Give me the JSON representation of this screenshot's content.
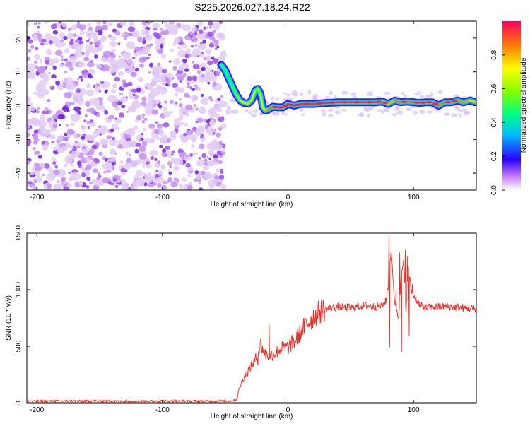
{
  "title": "S225.2026.027.18.24.R22",
  "chart_data": [
    {
      "type": "heatmap",
      "name": "spectrogram",
      "xlabel": "Height of straight line (km)",
      "ylabel": "Frequency (Hz)",
      "xlim": [
        -208,
        150
      ],
      "ylim": [
        -25,
        25
      ],
      "xticks": [
        -200,
        -100,
        0,
        100
      ],
      "yticks": [
        -20,
        -10,
        0,
        10,
        20
      ],
      "xtick_labels": [
        "-200",
        "-100",
        "0",
        "100"
      ],
      "ytick_labels": [
        "-20",
        "-10",
        "0",
        "10",
        "20"
      ],
      "noise_region": {
        "x_from": -208,
        "x_to": -51,
        "amplitude_range": [
          0.05,
          0.25
        ]
      },
      "signal_ridge": {
        "x": [
          -53,
          -50,
          -47,
          -44,
          -41,
          -38,
          -35,
          -32,
          -29,
          -26,
          -24,
          -22,
          -20,
          -18,
          -15,
          -12,
          -8,
          -4,
          0,
          5,
          10,
          20,
          30,
          40,
          50,
          60,
          70,
          75,
          80,
          85,
          90,
          95,
          100,
          105,
          110,
          115,
          120,
          125,
          130,
          135,
          140,
          145,
          150
        ],
        "frequency_hz": [
          12,
          10.5,
          8,
          5.5,
          3.2,
          1.5,
          0.8,
          0.6,
          1.5,
          4.5,
          5,
          3.5,
          -0.5,
          -1.5,
          -1,
          -0.3,
          -0.5,
          -0.5,
          0.5,
          0,
          0.5,
          0.5,
          0.8,
          1,
          1,
          1,
          1,
          1.2,
          0.5,
          1.5,
          1,
          1.2,
          1,
          0.8,
          1,
          1,
          0,
          1,
          1,
          1.5,
          1,
          1.5,
          1
        ],
        "amplitude": [
          0.3,
          0.35,
          0.4,
          0.45,
          0.55,
          0.65,
          0.75,
          0.8,
          0.75,
          0.6,
          0.55,
          0.6,
          0.7,
          0.8,
          0.85,
          0.9,
          0.92,
          0.92,
          0.95,
          0.95,
          0.95,
          0.95,
          0.96,
          0.95,
          0.95,
          0.96,
          0.95,
          0.9,
          0.75,
          0.85,
          0.9,
          0.88,
          0.9,
          0.9,
          0.9,
          0.95,
          0.85,
          0.9,
          0.9,
          0.85,
          0.85,
          0.8,
          0.75
        ]
      },
      "colorbar": {
        "label": "Normalized spectral amplitude",
        "range": [
          0,
          1
        ],
        "ticks": [
          0.0,
          0.2,
          0.4,
          0.6,
          0.8
        ],
        "tick_labels": [
          "0.0",
          "0.2",
          "0.4",
          "0.6",
          "0.8"
        ]
      }
    },
    {
      "type": "line",
      "name": "snr",
      "xlabel": "Height of straight line (km)",
      "ylabel": "SNR (10 * v/v)",
      "xlim": [
        -208,
        150
      ],
      "ylim": [
        0,
        1500
      ],
      "xticks": [
        -200,
        -100,
        0,
        100
      ],
      "yticks": [
        0,
        500,
        1000,
        1500
      ],
      "xtick_labels": [
        "-200",
        "-100",
        "0",
        "100"
      ],
      "ytick_labels": [
        "0",
        "500",
        "1000",
        "1500"
      ],
      "series": [
        {
          "name": "SNR",
          "color": "#e8302a",
          "x": [
            -208,
            -180,
            -150,
            -120,
            -90,
            -60,
            -45,
            -41,
            -38,
            -35,
            -30,
            -25,
            -22,
            -18,
            -14,
            -10,
            -5,
            0,
            5,
            10,
            15,
            20,
            25,
            30,
            40,
            50,
            60,
            70,
            75,
            78,
            80,
            82,
            85,
            88,
            90,
            92,
            94,
            96,
            98,
            100,
            105,
            110,
            120,
            130,
            140,
            150
          ],
          "y": [
            15,
            15,
            15,
            15,
            15,
            15,
            15,
            30,
            150,
            230,
            310,
            400,
            520,
            430,
            420,
            440,
            480,
            490,
            540,
            620,
            700,
            760,
            800,
            830,
            850,
            840,
            860,
            850,
            860,
            900,
            1050,
            1350,
            900,
            750,
            1100,
            1250,
            820,
            1200,
            1000,
            950,
            860,
            840,
            850,
            850,
            840,
            830
          ],
          "spikes": [
            {
              "x": 80.5,
              "y": 1520
            },
            {
              "x": 81,
              "y": 490
            },
            {
              "x": 86,
              "y": 1000
            },
            {
              "x": 89,
              "y": 1330
            },
            {
              "x": 90.5,
              "y": 450
            },
            {
              "x": 93.5,
              "y": 1350
            },
            {
              "x": 95,
              "y": 1300
            },
            {
              "x": 96.5,
              "y": 590
            },
            {
              "x": 99,
              "y": 1050
            },
            {
              "x": -15,
              "y": 690
            },
            {
              "x": -24,
              "y": 330
            }
          ]
        }
      ]
    }
  ]
}
